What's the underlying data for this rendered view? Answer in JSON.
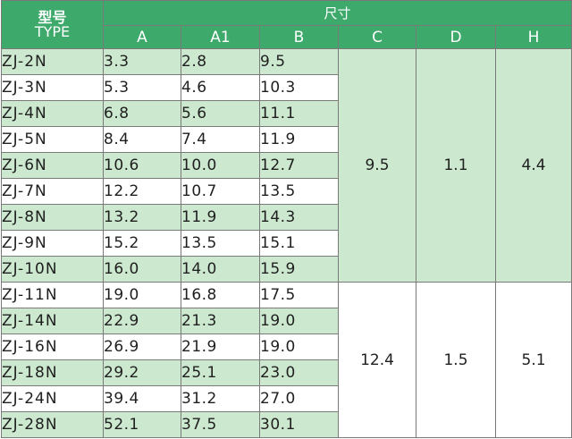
{
  "header": {
    "model_label_cn": "型号",
    "model_label_en": "TYPE",
    "size_label": "尺寸",
    "columns": [
      "A",
      "A1",
      "B",
      "C",
      "D",
      "H"
    ]
  },
  "rows": [
    {
      "model": "ZJ-2N",
      "a": "3.3",
      "a1": "2.8",
      "b": "9.5"
    },
    {
      "model": "ZJ-3N",
      "a": "5.3",
      "a1": "4.6",
      "b": "10.3"
    },
    {
      "model": "ZJ-4N",
      "a": "6.8",
      "a1": "5.6",
      "b": "11.1"
    },
    {
      "model": "ZJ-5N",
      "a": "8.4",
      "a1": "7.4",
      "b": "11.9"
    },
    {
      "model": "ZJ-6N",
      "a": "10.6",
      "a1": "10.0",
      "b": "12.7"
    },
    {
      "model": "ZJ-7N",
      "a": "12.2",
      "a1": "10.7",
      "b": "13.5"
    },
    {
      "model": "ZJ-8N",
      "a": "13.2",
      "a1": "11.9",
      "b": "14.3"
    },
    {
      "model": "ZJ-9N",
      "a": "15.2",
      "a1": "13.5",
      "b": "15.1"
    },
    {
      "model": "ZJ-10N",
      "a": "16.0",
      "a1": "14.0",
      "b": "15.9"
    },
    {
      "model": "ZJ-11N",
      "a": "19.0",
      "a1": "16.8",
      "b": "17.5"
    },
    {
      "model": "ZJ-14N",
      "a": "22.9",
      "a1": "21.3",
      "b": "19.0"
    },
    {
      "model": "ZJ-16N",
      "a": "26.9",
      "a1": "21.9",
      "b": "19.0"
    },
    {
      "model": "ZJ-18N",
      "a": "29.2",
      "a1": "25.1",
      "b": "23.0"
    },
    {
      "model": "ZJ-24N",
      "a": "39.4",
      "a1": "31.2",
      "b": "27.0"
    },
    {
      "model": "ZJ-28N",
      "a": "52.1",
      "a1": "37.5",
      "b": "30.1"
    }
  ],
  "groups": [
    {
      "c": "9.5",
      "d": "1.1",
      "h": "4.4"
    },
    {
      "c": "12.4",
      "d": "1.5",
      "h": "5.1"
    }
  ],
  "colors": {
    "header_green": "#3daa6b",
    "row_green": "#cce8cf",
    "row_white": "#ffffff",
    "border": "#7a7a7a"
  }
}
